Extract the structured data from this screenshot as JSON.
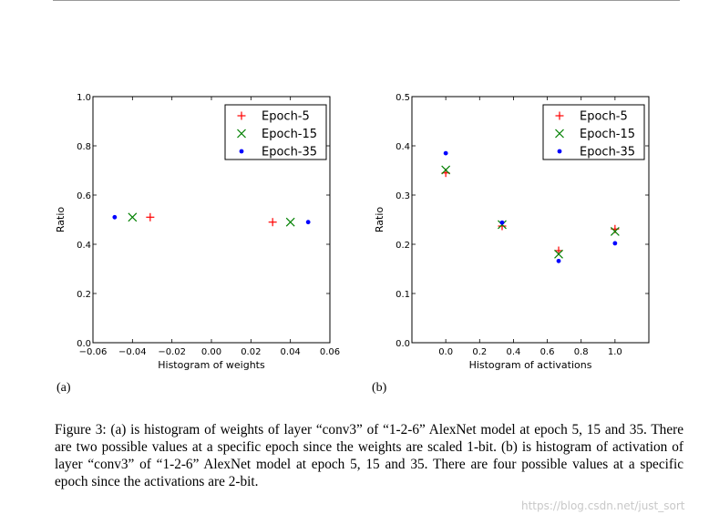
{
  "chart_data": [
    {
      "panel": "(a)",
      "type": "scatter",
      "xlabel": "Histogram of weights",
      "ylabel": "Ratio",
      "xlim": [
        -0.06,
        0.06
      ],
      "ylim": [
        0.0,
        1.0
      ],
      "xticks": [
        "−0.06",
        "−0.04",
        "−0.02",
        "0.00",
        "0.02",
        "0.04",
        "0.06"
      ],
      "yticks": [
        "0.0",
        "0.2",
        "0.4",
        "0.6",
        "0.8",
        "1.0"
      ],
      "legend_position": "top-right",
      "series": [
        {
          "name": "Epoch-5",
          "marker": "plus",
          "color": "#ff0000",
          "points": [
            [
              -0.031,
              0.51
            ],
            [
              0.031,
              0.49
            ]
          ]
        },
        {
          "name": "Epoch-15",
          "marker": "x",
          "color": "#008000",
          "points": [
            [
              -0.04,
              0.51
            ],
            [
              0.04,
              0.49
            ]
          ]
        },
        {
          "name": "Epoch-35",
          "marker": "dot",
          "color": "#0000ff",
          "points": [
            [
              -0.049,
              0.51
            ],
            [
              0.049,
              0.49
            ]
          ]
        }
      ]
    },
    {
      "panel": "(b)",
      "type": "scatter",
      "xlabel": "Histogram of activations",
      "ylabel": "Ratio",
      "xlim": [
        -0.2,
        1.2
      ],
      "ylim": [
        0.0,
        0.5
      ],
      "xticks": [
        "0.0",
        "0.2",
        "0.4",
        "0.6",
        "0.8",
        "1.0"
      ],
      "yticks": [
        "0.0",
        "0.1",
        "0.2",
        "0.3",
        "0.4",
        "0.5"
      ],
      "legend_position": "top-right",
      "series": [
        {
          "name": "Epoch-5",
          "marker": "plus",
          "color": "#ff0000",
          "points": [
            [
              0.0,
              0.345
            ],
            [
              0.333,
              0.237
            ],
            [
              0.667,
              0.187
            ],
            [
              1.0,
              0.231
            ]
          ]
        },
        {
          "name": "Epoch-15",
          "marker": "x",
          "color": "#008000",
          "points": [
            [
              0.0,
              0.351
            ],
            [
              0.333,
              0.24
            ],
            [
              0.667,
              0.18
            ],
            [
              1.0,
              0.226
            ]
          ]
        },
        {
          "name": "Epoch-35",
          "marker": "dot",
          "color": "#0000ff",
          "points": [
            [
              0.0,
              0.385
            ],
            [
              0.333,
              0.244
            ],
            [
              0.667,
              0.166
            ],
            [
              1.0,
              0.202
            ]
          ]
        }
      ]
    }
  ],
  "panel_labels": {
    "a": "(a)",
    "b": "(b)"
  },
  "caption": "Figure 3: (a) is histogram of weights of layer “conv3” of “1-2-6” AlexNet model at epoch 5, 15 and 35. There are two possible values at a specific epoch since the weights are scaled 1-bit. (b) is histogram of activation of layer “conv3” of “1-2-6” AlexNet model at epoch 5, 15 and 35. There are four possible values at a specific epoch since the activations are 2-bit.",
  "watermark": "https://blog.csdn.net/just_sort"
}
